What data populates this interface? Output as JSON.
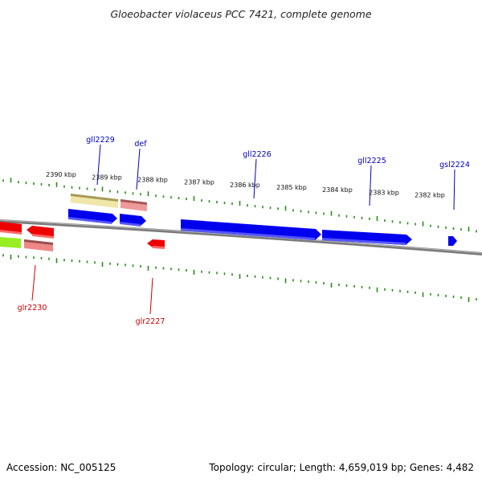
{
  "title": "Gloeobacter violaceus PCC 7421, complete genome",
  "footer": {
    "accession": "Accession: NC_005125",
    "summary": "Topology: circular; Length: 4,659,019 bp; Genes: 4,482"
  },
  "colors": {
    "forward_gene": "#0000ee",
    "reverse_gene": "#ee0000",
    "forward_label": "#0000bb",
    "reverse_label": "#cc0000",
    "tick": "#2a8a1a",
    "backbone": "#808080",
    "trna_yellow": "#efe4a0",
    "light_red": "#e88888",
    "lime": "#99ee22"
  },
  "scale_labels": [
    "2390 kbp",
    "2389 kbp",
    "2388 kbp",
    "2387 kbp",
    "2386 kbp",
    "2385 kbp",
    "2384 kbp",
    "2383 kbp",
    "2382 kbp"
  ],
  "forward_genes": [
    "gll2229",
    "def",
    "gll2226",
    "gll2225",
    "gsl2224"
  ],
  "reverse_genes": [
    "glr2230",
    "glr2227"
  ]
}
